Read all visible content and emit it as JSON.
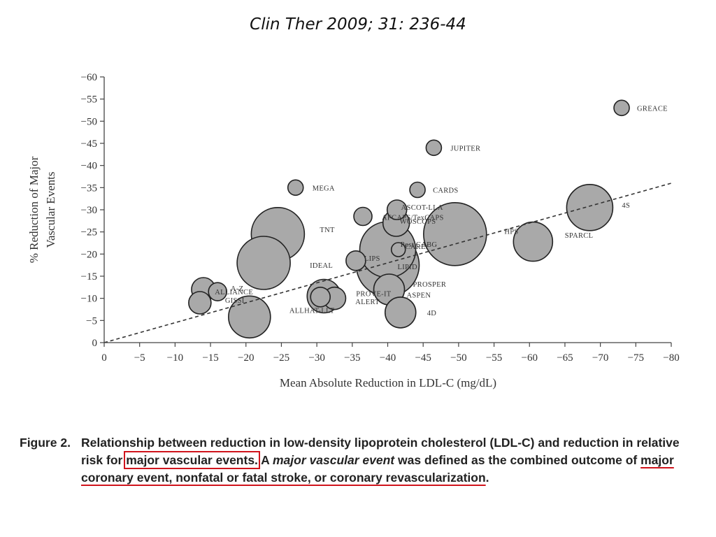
{
  "citation": "Clin Ther 2009; 31: 236-44",
  "caption": {
    "figure_label": "Figure 2.",
    "text_1": "Relationship between reduction in low-density lipoprotein cholesterol (LDL-C) and reduction in relative risk for ",
    "boxed": "major vascular events.",
    "text_2": " A ",
    "italic": "major vascular event",
    "text_3": " was defined as the combined outcome of ",
    "underlined": "major coronary event, nonfatal or fatal stroke, or coronary revascularization",
    "text_4": "."
  },
  "colors": {
    "bubble": "#a9a9a9",
    "annotation": "#d0141c",
    "trendline": "#333333"
  },
  "chart_data": {
    "type": "scatter",
    "xlabel": "Mean Absolute Reduction in LDL-C (mg/dL)",
    "ylabel_lines": [
      "% Reduction of Major",
      "Vascular Events"
    ],
    "xlim": [
      0,
      -80
    ],
    "ylim": [
      0,
      -60
    ],
    "xticks": [
      0,
      -5,
      -10,
      -15,
      -20,
      -25,
      -30,
      -35,
      -40,
      -45,
      -50,
      -55,
      -60,
      -65,
      -70,
      -75,
      -80
    ],
    "yticks": [
      0,
      -5,
      -10,
      -15,
      -20,
      -25,
      -30,
      -35,
      -40,
      -45,
      -50,
      -55,
      -60
    ],
    "grid": false,
    "trendline": {
      "x": [
        0,
        -80
      ],
      "y": [
        0,
        -36
      ]
    },
    "points": [
      {
        "label": "GREACE",
        "x": -73,
        "y": -53,
        "size": 11
      },
      {
        "label": "JUPITER",
        "x": -46.5,
        "y": -44,
        "size": 11
      },
      {
        "label": "MEGA",
        "x": -27,
        "y": -35,
        "size": 11
      },
      {
        "label": "CARDS",
        "x": -44.2,
        "y": -34.5,
        "size": 11
      },
      {
        "label": "4S",
        "x": -68.5,
        "y": -30.5,
        "size": 33
      },
      {
        "label": "ASCOT-LLA",
        "x": -41.3,
        "y": -30,
        "size": 14
      },
      {
        "label": "AFCAPS/TexCAPS",
        "x": -36.5,
        "y": -28.5,
        "size": 13
      },
      {
        "label": "WOSCOPS",
        "x": -41.2,
        "y": -27,
        "size": 19
      },
      {
        "label": "TNT",
        "x": -24.5,
        "y": -24.5,
        "size": 38
      },
      {
        "label": "HPS",
        "x": -60.5,
        "y": -22.8,
        "size": 28
      },
      {
        "label": "SPARCL",
        "x": -49.5,
        "y": -24.5,
        "size": 45
      },
      {
        "label": "CARE/",
        "x": -40,
        "y": -21,
        "size": 40
      },
      {
        "label": "Post CABG",
        "x": -41.5,
        "y": -21,
        "size": 10
      },
      {
        "label": "IDEAL",
        "x": -22.5,
        "y": -18,
        "size": 38
      },
      {
        "label": "LIPS",
        "x": -35.5,
        "y": -18.5,
        "size": 14
      },
      {
        "label": "LIPID",
        "x": -40,
        "y": -17.5,
        "size": 45
      },
      {
        "label": "A-Z",
        "x": -14,
        "y": -12,
        "size": 17
      },
      {
        "label": "ALLIANCE",
        "x": -16,
        "y": -11.5,
        "size": 13
      },
      {
        "label": "PROSPER",
        "x": -40.2,
        "y": -12,
        "size": 22
      },
      {
        "label": "PROVE-IT",
        "x": -31,
        "y": -10.5,
        "size": 24
      },
      {
        "label": "ASPEN",
        "x": -32.5,
        "y": -10,
        "size": 16
      },
      {
        "label": "ALERT",
        "x": -30.5,
        "y": -10.3,
        "size": 14
      },
      {
        "label": "GISSI",
        "x": -13.5,
        "y": -9,
        "size": 16
      },
      {
        "label": "ALLHAT-LLT",
        "x": -20.5,
        "y": -5.8,
        "size": 30
      },
      {
        "label": "4D",
        "x": -41.8,
        "y": -6.8,
        "size": 22
      }
    ]
  }
}
